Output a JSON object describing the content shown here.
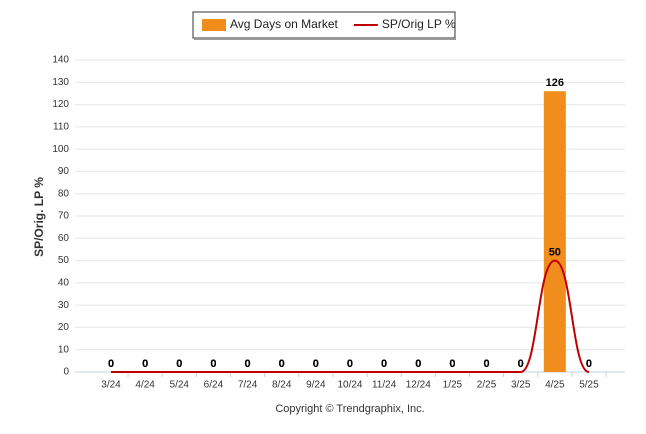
{
  "chart_data": {
    "type": "combo",
    "y_label": "SP/Orig. LP %",
    "footer": "Copyright © Trendgraphix, Inc.",
    "categories": [
      "3/24",
      "4/24",
      "5/24",
      "6/24",
      "7/24",
      "8/24",
      "9/24",
      "10/24",
      "11/24",
      "12/24",
      "1/25",
      "2/25",
      "3/25",
      "4/25",
      "5/25"
    ],
    "series": [
      {
        "name": "Avg Days on Market",
        "type": "bar",
        "color": "#f18d1c",
        "values": [
          0,
          0,
          0,
          0,
          0,
          0,
          0,
          0,
          0,
          0,
          0,
          0,
          0,
          126,
          0
        ]
      },
      {
        "name": "SP/Orig LP %",
        "type": "line",
        "color": "#c00000",
        "values": [
          0,
          0,
          0,
          0,
          0,
          0,
          0,
          0,
          0,
          0,
          0,
          0,
          0,
          50,
          0
        ]
      }
    ],
    "ylim": [
      0,
      140
    ],
    "yticks": [
      0,
      10,
      20,
      30,
      40,
      50,
      60,
      70,
      80,
      90,
      100,
      110,
      120,
      130,
      140
    ],
    "grid": true
  }
}
